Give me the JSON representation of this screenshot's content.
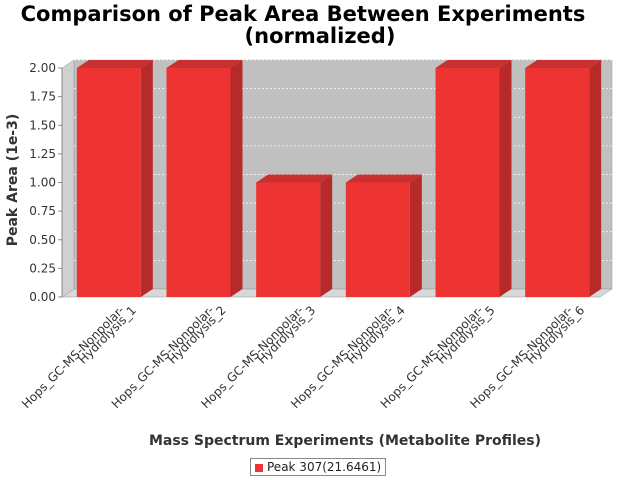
{
  "chart_data": {
    "type": "bar",
    "title": "Comparison of Peak Area Between Experiments",
    "subtitle": "(normalized)",
    "xlabel": "Mass Spectrum Experiments (Metabolite Profiles)",
    "ylabel": "Peak Area (1e-3)",
    "categories": [
      [
        "Hops_GC-MS-Nonpolar-",
        "Hydrolysis_1"
      ],
      [
        "Hops_GC-MS-Nonpolar-",
        "Hydrolysis_2"
      ],
      [
        "Hops_GC-MS-Nonpolar-",
        "Hydrolysis_3"
      ],
      [
        "Hops_GC-MS-Nonpolar-",
        "Hydrolysis_4"
      ],
      [
        "Hops_GC-MS-Nonpolar-",
        "Hydrolysis_5"
      ],
      [
        "Hops_GC-MS-Nonpolar-",
        "Hydrolysis_6"
      ]
    ],
    "series": [
      {
        "name": "Peak 307(21.6461)",
        "color": "#ee3333",
        "values": [
          2.0,
          2.0,
          1.0,
          1.0,
          2.0,
          2.0
        ]
      }
    ],
    "ylim": [
      0,
      2.0
    ],
    "yticks": [
      "0.00",
      "0.25",
      "0.50",
      "0.75",
      "1.00",
      "1.25",
      "1.50",
      "1.75",
      "2.00"
    ],
    "grid": true,
    "three_d": true,
    "legend_position": "bottom"
  }
}
